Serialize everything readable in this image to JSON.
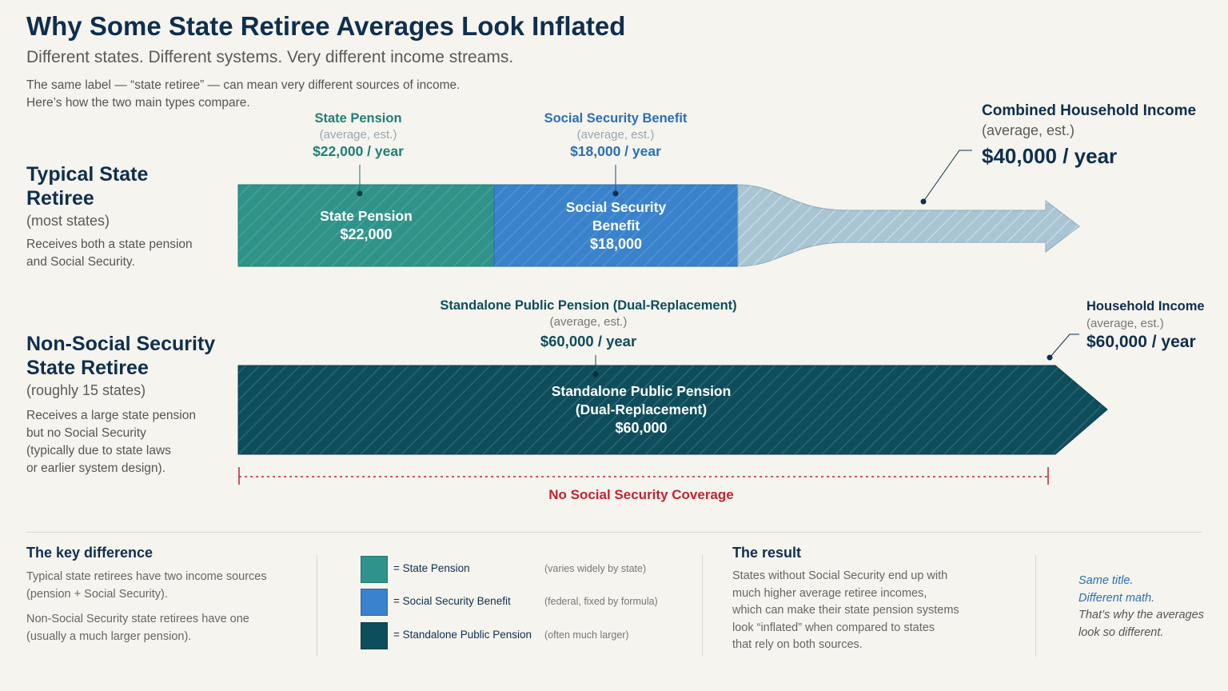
{
  "header": {
    "title": "Why Some State Retiree Averages Look Inflated",
    "subtitle": "Different states. Different systems. Very different income streams.",
    "intro_line1": "The same label — “state retiree” — can mean very different sources of income.",
    "intro_line2": "Here’s how the two main types compare."
  },
  "row1": {
    "heading_line1": "Typical State",
    "heading_line2": "Retiree",
    "sub": "(most states)",
    "desc_line1": "Receives both a state pension",
    "desc_line2": "and Social Security.",
    "pension_label": {
      "title": "State Pension",
      "sub": "(average, est.)",
      "value": "$22,000 / year"
    },
    "ss_label": {
      "title": "Social Security Benefit",
      "sub": "(average, est.)",
      "value": "$18,000 / year"
    },
    "combined_label": {
      "title": "Combined Household Income",
      "sub": "(average, est.)",
      "value": "$40,000 / year"
    },
    "pension_bar": {
      "label": "State Pension",
      "value": "$22,000"
    },
    "ss_bar": {
      "label_line1": "Social Security",
      "label_line2": "Benefit",
      "value": "$18,000"
    }
  },
  "row2": {
    "heading_line1": "Non-Social Security",
    "heading_line2": "State Retiree",
    "sub": "(roughly 15 states)",
    "desc_lines": [
      "Receives a large state pension",
      "but no Social Security",
      "(typically due to state laws",
      "or earlier system design)."
    ],
    "pension_label": {
      "title": "Standalone Public Pension (Dual-Replacement)",
      "sub": "(average, est.)",
      "value": "$60,000 / year"
    },
    "household_label": {
      "title": "Household Income",
      "sub": "(average, est.)",
      "value": "$60,000 / year"
    },
    "bar": {
      "label_line1": "Standalone Public Pension",
      "label_line2": "(Dual-Replacement)",
      "value": "$60,000"
    },
    "no_coverage": "No Social Security Coverage"
  },
  "footer": {
    "key_difference": {
      "title": "The key difference",
      "p1_line1": "Typical state retirees have two income sources",
      "p1_line2": "(pension + Social Security).",
      "p2_line1": "Non-Social Security state retirees have one",
      "p2_line2": "(usually a much larger pension)."
    },
    "legend": [
      {
        "label": "= State Pension",
        "note": "(varies widely by state)",
        "color": "#2f9389"
      },
      {
        "label": "= Social Security Benefit",
        "note": "(federal, fixed by formula)",
        "color": "#3a82cc"
      },
      {
        "label": "= Standalone Public Pension",
        "note": "(often much larger)",
        "color": "#0e4d5c"
      }
    ],
    "result": {
      "title": "The result",
      "lines": [
        "States without Social Security end up with",
        "much higher average retiree incomes,",
        "which can make their state pension systems",
        "look “inflated” when compared to states",
        "that rely on both sources."
      ]
    },
    "quote": [
      "Same title.",
      "Different math.",
      "That’s why the averages",
      "look so different."
    ]
  },
  "colors": {
    "state_pension": "#2f9389",
    "social_security": "#3a82cc",
    "standalone_pension": "#0e4d5c",
    "combined_flow": "#a9c4d3",
    "no_coverage": "#c4232e",
    "title": "#0e2f4e"
  }
}
